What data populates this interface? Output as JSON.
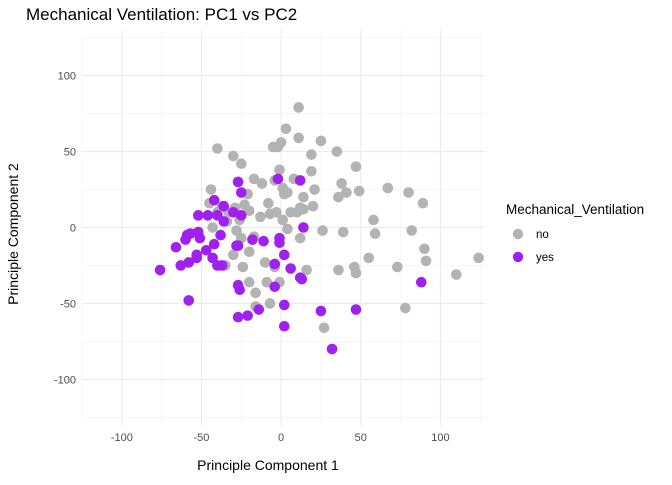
{
  "chart_data": {
    "type": "scatter",
    "title": "Mechanical Ventilation: PC1 vs PC2",
    "xlabel": "Principle Component 1",
    "ylabel": "Principle Component 2",
    "xlim": [
      -125,
      128
    ],
    "ylim": [
      -130,
      130
    ],
    "x_ticks": [
      -100,
      -50,
      0,
      50,
      100
    ],
    "y_ticks": [
      -100,
      -50,
      0,
      50,
      100
    ],
    "grid": true,
    "legend": {
      "title": "Mechanical_Ventilation",
      "placement": "right"
    },
    "series": [
      {
        "name": "no",
        "color": "#b3b3b3",
        "points": [
          [
            11,
            79
          ],
          [
            3,
            65
          ],
          [
            25,
            57
          ],
          [
            11,
            59
          ],
          [
            0,
            56
          ],
          [
            -5,
            53
          ],
          [
            -2,
            53
          ],
          [
            -40,
            52
          ],
          [
            -30,
            47
          ],
          [
            19,
            48
          ],
          [
            35,
            50
          ],
          [
            47,
            40
          ],
          [
            -25,
            42
          ],
          [
            -44,
            25
          ],
          [
            -1,
            38
          ],
          [
            19,
            37
          ],
          [
            -17,
            32
          ],
          [
            8,
            32
          ],
          [
            1,
            26
          ],
          [
            -12,
            29
          ],
          [
            -4,
            31
          ],
          [
            2,
            22
          ],
          [
            21,
            25
          ],
          [
            38,
            29
          ],
          [
            -21,
            22
          ],
          [
            -45,
            16
          ],
          [
            -37,
            14
          ],
          [
            -29,
            13
          ],
          [
            -33,
            10
          ],
          [
            -23,
            15
          ],
          [
            -20,
            11
          ],
          [
            -8,
            16
          ],
          [
            4,
            23
          ],
          [
            14,
            20
          ],
          [
            41,
            23
          ],
          [
            49,
            24
          ],
          [
            36,
            20
          ],
          [
            20,
            14
          ],
          [
            14,
            12
          ],
          [
            10,
            10
          ],
          [
            -3,
            10
          ],
          [
            -13,
            7
          ],
          [
            6,
            10
          ],
          [
            12,
            13
          ],
          [
            1,
            5
          ],
          [
            -40,
            10
          ],
          [
            -34,
            4
          ],
          [
            -26,
            5
          ],
          [
            -43,
            0
          ],
          [
            -28,
            -2
          ],
          [
            -17,
            -6
          ],
          [
            -7,
            9
          ],
          [
            4,
            -1
          ],
          [
            12,
            -7
          ],
          [
            26,
            -2
          ],
          [
            39,
            -3
          ],
          [
            58,
            5
          ],
          [
            59,
            -4
          ],
          [
            67,
            26
          ],
          [
            80,
            23
          ],
          [
            89,
            16
          ],
          [
            82,
            -2
          ],
          [
            90,
            -14
          ],
          [
            91,
            -22
          ],
          [
            -25,
            -7
          ],
          [
            -30,
            -18
          ],
          [
            -20,
            -16
          ],
          [
            -35,
            -25
          ],
          [
            -24,
            -26
          ],
          [
            -10,
            -23
          ],
          [
            -4,
            -26
          ],
          [
            -1,
            -36
          ],
          [
            -20,
            -36
          ],
          [
            -16,
            -43
          ],
          [
            -9,
            -36
          ],
          [
            -7,
            -50
          ],
          [
            16,
            -28
          ],
          [
            36,
            -28
          ],
          [
            46,
            -26
          ],
          [
            47,
            -30
          ],
          [
            55,
            -20
          ],
          [
            73,
            -26
          ],
          [
            78,
            -53
          ],
          [
            110,
            -31
          ],
          [
            124,
            -20
          ],
          [
            27,
            -66
          ],
          [
            -16,
            -52
          ]
        ]
      },
      {
        "name": "yes",
        "color": "#a020f0",
        "points": [
          [
            -2,
            32
          ],
          [
            -25,
            23
          ],
          [
            -27,
            30
          ],
          [
            -42,
            18
          ],
          [
            -36,
            14
          ],
          [
            -30,
            10
          ],
          [
            12,
            31
          ],
          [
            -52,
            8
          ],
          [
            -40,
            8
          ],
          [
            -25,
            8
          ],
          [
            -46,
            8
          ],
          [
            -36,
            4
          ],
          [
            -52,
            -3
          ],
          [
            -57,
            -4
          ],
          [
            -51,
            -7
          ],
          [
            -66,
            -13
          ],
          [
            -60,
            -8
          ],
          [
            -38,
            -5
          ],
          [
            -42,
            -11
          ],
          [
            -40,
            -25
          ],
          [
            -27,
            -12
          ],
          [
            -18,
            -8
          ],
          [
            -1,
            -7
          ],
          [
            -1,
            -10
          ],
          [
            14,
            0
          ],
          [
            -28,
            -12
          ],
          [
            -4,
            -24
          ],
          [
            -53,
            -20
          ],
          [
            -58,
            -23
          ],
          [
            -76,
            -28
          ],
          [
            -47,
            -15
          ],
          [
            -43,
            -20
          ],
          [
            -37,
            -25
          ],
          [
            -53,
            -18
          ],
          [
            -27,
            -38
          ],
          [
            2,
            -18
          ],
          [
            6,
            -27
          ],
          [
            12,
            -33
          ],
          [
            13,
            -34
          ],
          [
            25,
            -55
          ],
          [
            -4,
            -39
          ],
          [
            -26,
            -41
          ],
          [
            2,
            -51
          ],
          [
            -21,
            -58
          ],
          [
            -27,
            -59
          ],
          [
            2,
            -65
          ],
          [
            47,
            -54
          ],
          [
            -58,
            -48
          ],
          [
            32,
            -80
          ],
          [
            -59,
            -5
          ],
          [
            -63,
            -25
          ],
          [
            88,
            -36
          ],
          [
            -14,
            -54
          ],
          [
            -11,
            -9
          ]
        ]
      }
    ]
  }
}
